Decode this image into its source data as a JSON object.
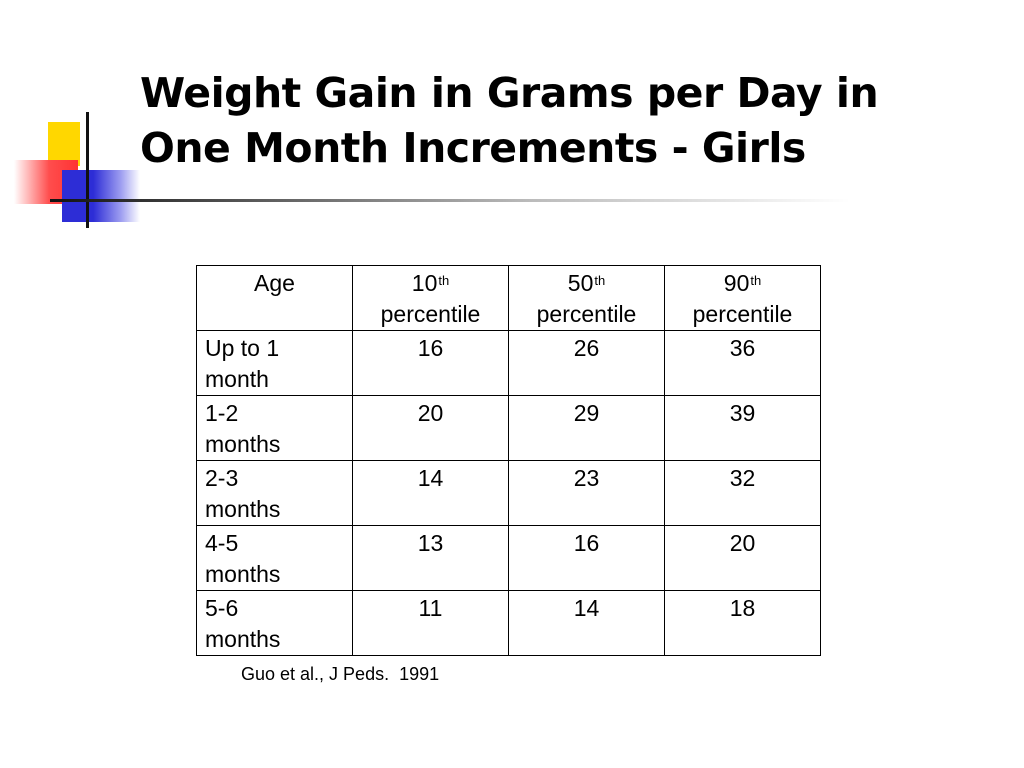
{
  "title": {
    "line1": "Weight Gain in Grams per Day in",
    "line2": "One Month Increments - Girls"
  },
  "table": {
    "headers": [
      {
        "main": "Age",
        "sup": "",
        "sub": ""
      },
      {
        "main": "10",
        "sup": "th",
        "sub": "percentile"
      },
      {
        "main": "50",
        "sup": "th",
        "sub": "percentile"
      },
      {
        "main": "90",
        "sup": "th",
        "sub": "percentile"
      }
    ],
    "rows": [
      {
        "age_line1": "Up to 1",
        "age_line2": "month",
        "p10": "16",
        "p50": "26",
        "p90": "36"
      },
      {
        "age_line1": "1-2",
        "age_line2": "months",
        "p10": "20",
        "p50": "29",
        "p90": "39"
      },
      {
        "age_line1": "2-3",
        "age_line2": "months",
        "p10": "14",
        "p50": "23",
        "p90": "32"
      },
      {
        "age_line1": "4-5",
        "age_line2": "months",
        "p10": "13",
        "p50": "16",
        "p90": "20"
      },
      {
        "age_line1": "5-6",
        "age_line2": "months",
        "p10": "11",
        "p50": "14",
        "p90": "18"
      }
    ]
  },
  "citation": "Guo et al., J Peds.  1991",
  "colors": {
    "logo_yellow": "#ffd700",
    "logo_red": "#ff3333",
    "logo_blue": "#2d2dd6",
    "text": "#000000"
  }
}
